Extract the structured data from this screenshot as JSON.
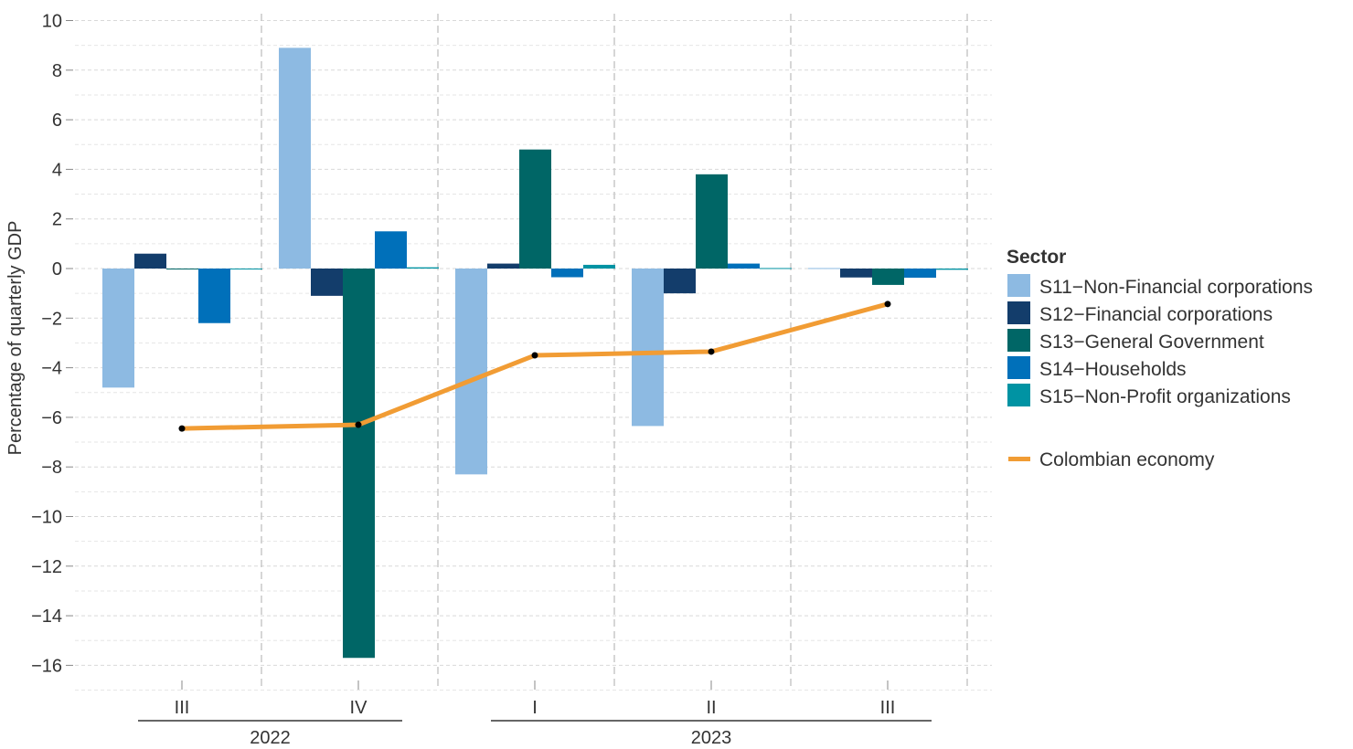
{
  "chart_data": {
    "type": "bar",
    "ylabel": "Percentage of quarterly GDP",
    "ylim": [
      -16,
      10
    ],
    "yticks": [
      10,
      8,
      6,
      4,
      2,
      0,
      -2,
      -4,
      -6,
      -8,
      -10,
      -12,
      -14,
      -16
    ],
    "ytick_labels": [
      "10",
      "8",
      "6",
      "4",
      "2",
      "0",
      "−2",
      "−4",
      "−6",
      "−8",
      "−10",
      "−12",
      "−14",
      "−16"
    ],
    "grid": true,
    "categories": [
      "III",
      "IV",
      "I",
      "II",
      "III"
    ],
    "years": [
      {
        "label": "2022",
        "quarters": [
          0,
          1
        ]
      },
      {
        "label": "2023",
        "quarters": [
          2,
          3,
          4
        ]
      }
    ],
    "legend_title": "Sector",
    "legend_position": "right",
    "series": [
      {
        "name": "S11−Non-Financial corporations",
        "color": "#8dbae2",
        "values": [
          -4.8,
          8.9,
          -8.3,
          -6.35,
          0.02
        ]
      },
      {
        "name": "S12−Financial corporations",
        "color": "#133d6b",
        "values": [
          0.6,
          -1.1,
          0.2,
          -1.0,
          -0.36
        ]
      },
      {
        "name": "S13−General Government",
        "color": "#006666",
        "values": [
          -0.03,
          -15.7,
          4.8,
          3.8,
          -0.66
        ]
      },
      {
        "name": "S14−Households",
        "color": "#0070ba",
        "values": [
          -2.2,
          1.5,
          -0.35,
          0.2,
          -0.37
        ]
      },
      {
        "name": "S15−Non-Profit organizations",
        "color": "#0093a3",
        "values": [
          -0.03,
          0.05,
          0.15,
          0.02,
          -0.05
        ]
      }
    ],
    "line": {
      "name": "Colombian economy",
      "color": "#f19c34",
      "values": [
        -6.45,
        -6.3,
        -3.5,
        -3.35,
        -1.43
      ]
    }
  }
}
